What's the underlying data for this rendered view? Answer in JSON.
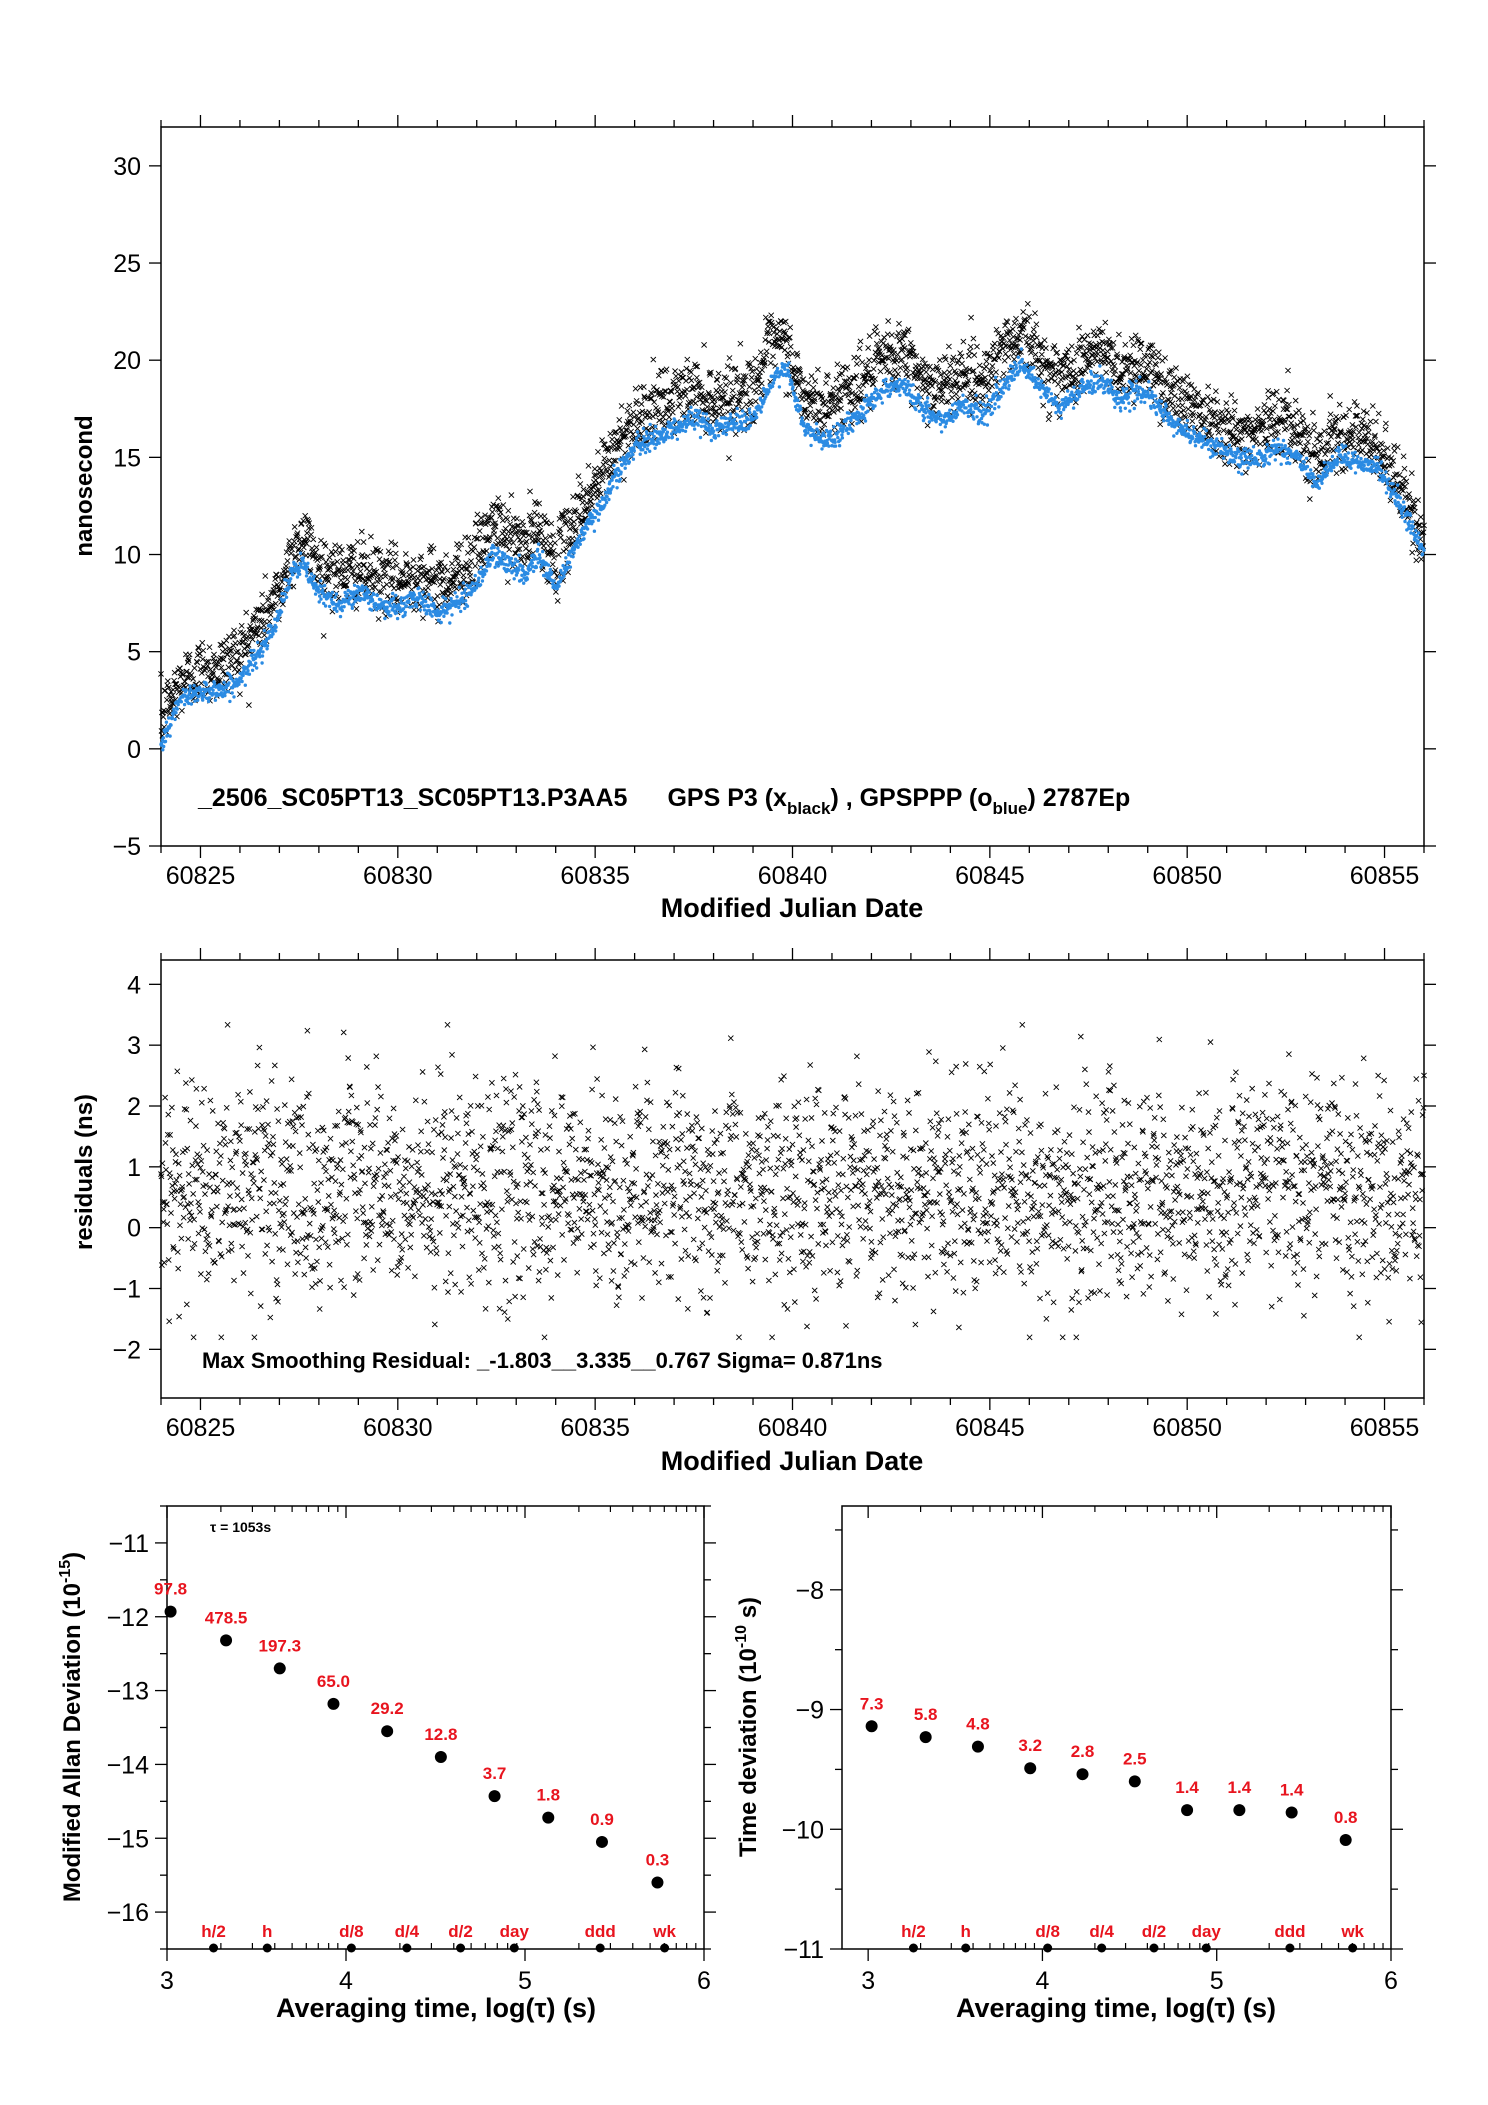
{
  "colors": {
    "black": "#000000",
    "blue": "#2b8be3",
    "red": "#e8141e"
  },
  "chart_data": [
    {
      "type": "scatter",
      "xlabel": "Modified Julian Date",
      "ylabel": "nanosecond",
      "xlim": [
        60824,
        60856
      ],
      "ylim": [
        -5,
        32
      ],
      "xticks": [
        "60825",
        "60830",
        "60835",
        "60840",
        "60845",
        "60850",
        "60855"
      ],
      "yticks": [
        "−5",
        "0",
        "5",
        "10",
        "15",
        "20",
        "25",
        "30"
      ],
      "annotation": {
        "file": "_2506_SC05PT13_SC05PT13.P3AA5",
        "gps_p3": "GPS P3 (x",
        "black": "black",
        "sep": ") ,  GPSPPP (o",
        "blue": "blue",
        "ep": ")  2787Ep"
      },
      "series": [
        {
          "marker": "x",
          "color": "#000000",
          "x": [
            60824.0,
            60824.5,
            60825.0,
            60825.5,
            60826.0,
            60826.5,
            60827.0,
            60827.3,
            60827.6,
            60828.0,
            60828.5,
            60829.0,
            60829.5,
            60830.0,
            60830.5,
            60831.0,
            60831.5,
            60832.0,
            60832.4,
            60832.8,
            60833.2,
            60833.6,
            60834.0,
            60834.5,
            60835.0,
            60835.5,
            60836.0,
            60836.5,
            60837.0,
            60837.5,
            60838.0,
            60838.5,
            60839.0,
            60839.4,
            60839.8,
            60840.3,
            60840.8,
            60841.3,
            60841.8,
            60842.3,
            60842.8,
            60843.3,
            60843.8,
            60844.3,
            60844.8,
            60845.3,
            60845.8,
            60846.3,
            60846.8,
            60847.3,
            60847.8,
            60848.3,
            60848.8,
            60849.3,
            60849.8,
            60850.3,
            60850.8,
            60851.3,
            60851.8,
            60852.3,
            60852.8,
            60853.3,
            60853.8,
            60854.3,
            60854.8,
            60855.3,
            60856.0
          ],
          "y": [
            1.5,
            3.5,
            4.0,
            4.2,
            5.0,
            6.5,
            8.0,
            10.0,
            11.0,
            9.5,
            9.0,
            9.2,
            8.8,
            8.5,
            9.0,
            8.5,
            9.0,
            10.0,
            11.5,
            11.0,
            10.5,
            11.5,
            9.5,
            12.0,
            13.5,
            15.5,
            17.0,
            17.5,
            18.0,
            18.5,
            18.0,
            18.3,
            18.5,
            20.5,
            21.0,
            18.0,
            17.5,
            18.5,
            19.0,
            20.0,
            20.5,
            19.0,
            18.5,
            19.5,
            19.0,
            20.5,
            21.5,
            20.0,
            19.0,
            20.0,
            20.5,
            19.5,
            20.0,
            19.0,
            18.0,
            17.5,
            17.0,
            16.0,
            16.5,
            17.0,
            16.5,
            15.0,
            16.5,
            16.0,
            15.5,
            14.0,
            10.5
          ]
        },
        {
          "marker": "o",
          "color": "#2b8be3",
          "x": [
            60824.0,
            60824.5,
            60825.0,
            60825.5,
            60826.0,
            60826.5,
            60827.0,
            60827.3,
            60827.6,
            60828.0,
            60828.5,
            60829.0,
            60829.5,
            60830.0,
            60830.5,
            60831.0,
            60831.5,
            60832.0,
            60832.4,
            60832.8,
            60833.2,
            60833.6,
            60834.0,
            60834.5,
            60835.0,
            60835.5,
            60836.0,
            60836.5,
            60837.0,
            60837.5,
            60838.0,
            60838.5,
            60839.0,
            60839.4,
            60839.8,
            60840.3,
            60840.8,
            60841.3,
            60841.8,
            60842.3,
            60842.8,
            60843.3,
            60843.8,
            60844.3,
            60844.8,
            60845.3,
            60845.8,
            60846.3,
            60846.8,
            60847.3,
            60847.8,
            60848.3,
            60848.8,
            60849.3,
            60849.8,
            60850.3,
            60850.8,
            60851.3,
            60851.8,
            60852.3,
            60852.8,
            60853.3,
            60853.8,
            60854.3,
            60854.8,
            60855.3,
            60856.0
          ],
          "y": [
            0.3,
            2.5,
            3.0,
            3.0,
            3.5,
            5.0,
            7.0,
            9.0,
            9.5,
            8.0,
            7.5,
            8.0,
            7.5,
            7.2,
            7.8,
            7.0,
            7.5,
            8.5,
            10.0,
            9.5,
            9.0,
            10.0,
            8.2,
            10.5,
            12.0,
            14.0,
            15.5,
            16.0,
            16.5,
            17.0,
            16.5,
            16.8,
            17.0,
            18.5,
            19.8,
            16.5,
            15.8,
            16.5,
            17.5,
            18.5,
            18.8,
            17.5,
            16.8,
            17.8,
            17.2,
            18.5,
            19.8,
            18.5,
            17.5,
            18.5,
            19.0,
            18.0,
            18.5,
            17.5,
            16.5,
            16.0,
            15.5,
            14.8,
            15.0,
            15.5,
            15.0,
            13.5,
            15.0,
            14.8,
            14.5,
            13.0,
            10.0
          ]
        }
      ]
    },
    {
      "type": "scatter",
      "xlabel": "Modified Julian Date",
      "ylabel": "residuals (ns)",
      "xlim": [
        60824,
        60856
      ],
      "ylim": [
        -2.8,
        4.4
      ],
      "xticks": [
        "60825",
        "60830",
        "60835",
        "60840",
        "60845",
        "60850",
        "60855"
      ],
      "yticks": [
        "−2",
        "−1",
        "0",
        "1",
        "2",
        "3",
        "4"
      ],
      "annotation": "Max Smoothing Residual: _-1.803__3.335__0.767  Sigma= 0.871ns",
      "series": [
        {
          "marker": "x",
          "color": "#000000",
          "mean": 0.6,
          "sigma": 0.871,
          "min": -1.803,
          "max": 3.335
        }
      ]
    },
    {
      "type": "scatter",
      "xlabel": "Averaging time, log(τ) (s)",
      "ylabel": "Modified Allan Deviation (10",
      "ylabel_sup": "-15",
      "ylabel_end": ")",
      "xlim": [
        3,
        6
      ],
      "ylim": [
        -16.5,
        -10.5
      ],
      "xticks": [
        "3",
        "4",
        "5",
        "6"
      ],
      "yticks": [
        "−11",
        "−12",
        "−13",
        "−14",
        "−15",
        "−16"
      ],
      "tau_note": "τ = 1053s",
      "x": [
        3.02,
        3.33,
        3.63,
        3.93,
        4.23,
        4.53,
        4.83,
        5.13,
        5.43,
        5.74
      ],
      "y": [
        -11.93,
        -12.32,
        -12.7,
        -13.18,
        -13.55,
        -13.9,
        -14.43,
        -14.72,
        -15.05,
        -15.6
      ],
      "labels": [
        "97.8",
        "478.5",
        "197.3",
        "65.0",
        "29.2",
        "12.8",
        "3.7",
        "1.8",
        "0.9",
        "0.3"
      ],
      "markers": {
        "labels": [
          "h/2",
          "h",
          "d/8",
          "d/4",
          "d/2",
          "day",
          "ddd",
          "wk"
        ],
        "x": [
          3.26,
          3.56,
          4.03,
          4.34,
          4.64,
          4.94,
          5.42,
          5.78
        ]
      }
    },
    {
      "type": "scatter",
      "xlabel": "Averaging time, log(τ) (s)",
      "ylabel": "Time deviation (10",
      "ylabel_sup": "-10",
      "ylabel_end": " s)",
      "xlim": [
        2.85,
        6
      ],
      "ylim": [
        -11,
        -7.3
      ],
      "xticks": [
        "3",
        "4",
        "5",
        "6"
      ],
      "yticks": [
        "−8",
        "−9",
        "−10",
        "−11"
      ],
      "x": [
        3.02,
        3.33,
        3.63,
        3.93,
        4.23,
        4.53,
        4.83,
        5.13,
        5.43,
        5.74
      ],
      "y": [
        -9.14,
        -9.23,
        -9.31,
        -9.49,
        -9.54,
        -9.6,
        -9.84,
        -9.84,
        -9.86,
        -10.09
      ],
      "labels": [
        "7.3",
        "5.8",
        "4.8",
        "3.2",
        "2.8",
        "2.5",
        "1.4",
        "1.4",
        "1.4",
        "0.8"
      ],
      "markers": {
        "labels": [
          "h/2",
          "h",
          "d/8",
          "d/4",
          "d/2",
          "day",
          "ddd",
          "wk"
        ],
        "x": [
          3.26,
          3.56,
          4.03,
          4.34,
          4.64,
          4.94,
          5.42,
          5.78
        ]
      }
    }
  ]
}
